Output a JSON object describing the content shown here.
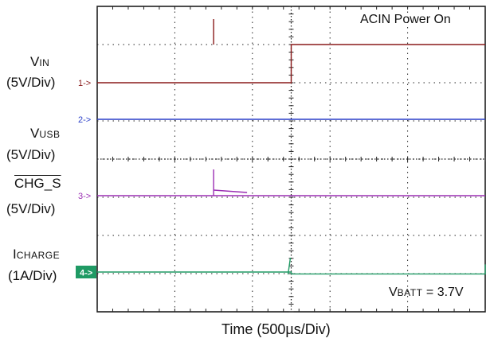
{
  "chart_data": {
    "type": "line",
    "title": "ACIN Power On",
    "xlabel": "Time  (500µs/Div)",
    "annotation": {
      "main": "V",
      "sub": "BATT",
      "rest": " = 3.7V"
    },
    "grid": true,
    "grid_divisions": {
      "x": 5,
      "y": 8
    },
    "x": [
      0,
      1.5,
      2.5,
      5
    ],
    "x_unit": "div",
    "channels": [
      {
        "number": "1",
        "name_main": "V",
        "name_sub": "IN",
        "name_overline": false,
        "scale": "(5V/Div)",
        "color": "#8a1a1a",
        "marker_style": "outline",
        "values": [
          0,
          0,
          1,
          1
        ],
        "value_unit": "div"
      },
      {
        "number": "2",
        "name_main": "V",
        "name_sub": "USB",
        "name_overline": false,
        "scale": "(5V/Div)",
        "color": "#2a3fc8",
        "marker_style": "outline",
        "values": [
          0,
          0,
          0,
          0
        ],
        "value_unit": "div"
      },
      {
        "number": "3",
        "name_main": "CHG_S",
        "name_sub": "",
        "name_overline": true,
        "scale": "(5V/Div)",
        "color": "#9b2fb3",
        "marker_style": "outline",
        "values": [
          0,
          0,
          0,
          0
        ],
        "value_unit": "div"
      },
      {
        "number": "4",
        "name_main": "I",
        "name_sub": "CHARGE",
        "name_overline": false,
        "scale": "(1A/Div)",
        "color": "#1f9a64",
        "marker_style": "filled",
        "values": [
          0,
          0,
          -0.05,
          0.2
        ],
        "value_unit": "div"
      }
    ]
  }
}
